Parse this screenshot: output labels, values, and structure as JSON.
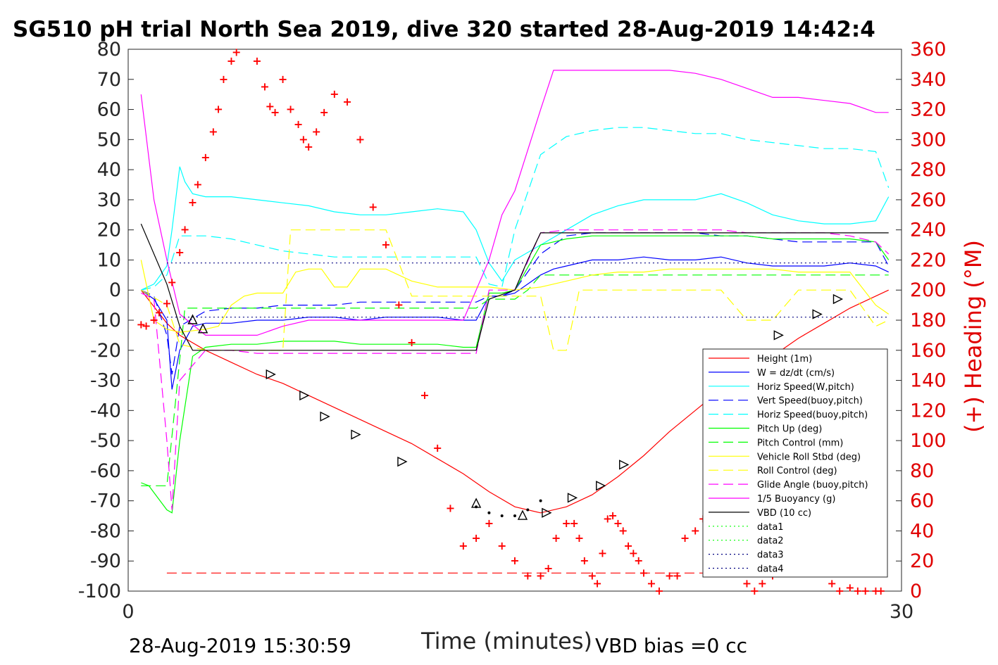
{
  "chart_data": {
    "type": "line",
    "title": "SG510 pH trial North Sea 2019, dive 320 started 28-Aug-2019 14:42:4",
    "xlabel": "Time (minutes)",
    "ylabel_right": "(+) Heading (°M)",
    "xlim": [
      0,
      30
    ],
    "ylim_left": [
      -100,
      80
    ],
    "ylim_right": [
      0,
      360
    ],
    "x_ticks": [
      "0",
      "30"
    ],
    "y_ticks_left": [
      "80",
      "70",
      "60",
      "50",
      "40",
      "30",
      "20",
      "10",
      "0",
      "-10",
      "-20",
      "-30",
      "-40",
      "-50",
      "-60",
      "-70",
      "-80",
      "-90",
      "-100"
    ],
    "y_ticks_right": [
      "360",
      "340",
      "320",
      "300",
      "280",
      "260",
      "240",
      "220",
      "200",
      "180",
      "160",
      "140",
      "120",
      "100",
      "80",
      "60",
      "40",
      "20",
      "0"
    ],
    "footer_left": "28-Aug-2019 15:30:59",
    "footer_right": "VBD bias =0 cc",
    "legend_position": "lower-right",
    "colors": {
      "height": "#ff0000",
      "w": "#0000ff",
      "horiz_w": "#00ffff",
      "vert_buoy": "#0000ff",
      "horiz_buoy": "#00ffff",
      "pitch": "#00ff00",
      "pitch_ctrl": "#00ff00",
      "roll": "#ffff00",
      "roll_ctrl": "#ffff00",
      "glide": "#ff00ff",
      "buoyancy": "#ff00ff",
      "vbd": "#000000",
      "data3": "#000080",
      "data4": "#000080",
      "heading": "#ff0000"
    },
    "series": [
      {
        "name": "Height (1m)",
        "color": "#ff0000",
        "style": "solid",
        "x": [
          0.5,
          1.5,
          2,
          3,
          4,
          5,
          6,
          7,
          8,
          9,
          10,
          11,
          12,
          13,
          14,
          15,
          16,
          17,
          18,
          19,
          20,
          21,
          22,
          23,
          24,
          25,
          26,
          27,
          28,
          29.5
        ],
        "y": [
          0,
          -11,
          -15,
          -20,
          -24,
          -28,
          -31,
          -35,
          -39,
          -43,
          -47,
          -51,
          -56,
          -61,
          -67,
          -72,
          -74,
          -72,
          -68,
          -62,
          -55,
          -47,
          -40,
          -33,
          -27,
          -22,
          -16,
          -11,
          -6,
          0
        ]
      },
      {
        "name": "W = dz/dt (cm/s)",
        "color": "#0000ff",
        "style": "solid",
        "x": [
          0.5,
          1,
          1.5,
          1.7,
          2,
          2.5,
          3,
          4,
          5,
          6,
          7,
          8,
          9,
          10,
          11,
          12,
          13,
          13.5,
          14,
          14.5,
          15,
          16,
          16.5,
          17,
          18,
          19,
          20,
          21,
          22,
          23,
          24,
          25,
          26,
          27,
          28,
          29,
          29.5
        ],
        "y": [
          0,
          -3,
          -10,
          -33,
          -20,
          -12,
          -11,
          -11,
          -10,
          -10,
          -9,
          -9,
          -10,
          -9,
          -9,
          -9,
          -10,
          -10,
          -2,
          -2,
          -1,
          5,
          7,
          8,
          10,
          10,
          11,
          10,
          10,
          11,
          9,
          8,
          8,
          8,
          9,
          8,
          6
        ]
      },
      {
        "name": "Horiz Speed(W,pitch)",
        "color": "#00ffff",
        "style": "solid",
        "x": [
          0.5,
          1,
          1.5,
          1.7,
          2,
          2.2,
          2.5,
          3,
          4,
          5,
          6,
          7,
          8,
          9,
          10,
          11,
          12,
          13,
          13.5,
          14,
          14.5,
          15,
          16,
          17,
          18,
          19,
          20,
          21,
          22,
          23,
          24,
          25,
          26,
          27,
          28,
          29,
          29.5
        ],
        "y": [
          0,
          2,
          8,
          20,
          41,
          36,
          32,
          31,
          31,
          30,
          29,
          28,
          26,
          25,
          25,
          26,
          27,
          26,
          20,
          9,
          3,
          10,
          15,
          20,
          25,
          28,
          30,
          30,
          30,
          32,
          29,
          25,
          23,
          22,
          22,
          23,
          31
        ]
      },
      {
        "name": "Vert Speed(buoy,pitch)",
        "color": "#0000ff",
        "style": "dashed",
        "x": [
          0.5,
          1,
          1.5,
          1.7,
          2,
          3,
          4,
          5,
          6,
          7,
          8,
          9,
          10,
          11,
          12,
          13,
          13.5,
          14,
          14.5,
          15,
          16,
          17,
          18,
          19,
          20,
          21,
          22,
          23,
          24,
          25,
          26,
          27,
          28,
          29,
          29.5
        ],
        "y": [
          0,
          -2,
          -15,
          -28,
          -12,
          -7,
          -6,
          -6,
          -5,
          -5,
          -5,
          -4,
          -4,
          -4,
          -4,
          -4,
          -4,
          -2,
          -2,
          0,
          12,
          18,
          19,
          19,
          19,
          19,
          19,
          18,
          18,
          17,
          16,
          16,
          16,
          16,
          8
        ]
      },
      {
        "name": "Horiz Speed(buoy,pitch)",
        "color": "#00ffff",
        "style": "dashed",
        "x": [
          0.5,
          1,
          1.5,
          1.7,
          2,
          3,
          4,
          5,
          6,
          7,
          8,
          9,
          10,
          11,
          12,
          13,
          13.5,
          14,
          14.5,
          15,
          16,
          17,
          18,
          19,
          20,
          21,
          22,
          23,
          24,
          25,
          26,
          27,
          28,
          29,
          29.5
        ],
        "y": [
          0,
          1,
          5,
          10,
          18,
          18,
          17,
          15,
          13,
          12,
          11,
          11,
          11,
          11,
          11,
          11,
          11,
          2,
          1,
          20,
          45,
          51,
          53,
          54,
          54,
          53,
          52,
          52,
          50,
          49,
          48,
          47,
          47,
          46,
          34
        ]
      },
      {
        "name": "Pitch Up (deg)",
        "color": "#00ff00",
        "style": "solid",
        "x": [
          0.5,
          0.8,
          1.5,
          1.7,
          2,
          2.5,
          3,
          4,
          5,
          6,
          7,
          8,
          9,
          10,
          11,
          12,
          13,
          13.5,
          14,
          14.5,
          15,
          16,
          17,
          18,
          19,
          20,
          21,
          22,
          23,
          24,
          25,
          26,
          27,
          28,
          29,
          29.5
        ],
        "y": [
          -64,
          -65,
          -73,
          -74,
          -50,
          -22,
          -19,
          -18,
          -18,
          -17,
          -17,
          -17,
          -18,
          -18,
          -18,
          -18,
          -19,
          -19,
          -1,
          -1,
          0,
          15,
          17,
          18,
          18,
          18,
          18,
          18,
          18,
          18,
          17,
          17,
          17,
          17,
          16,
          10
        ]
      },
      {
        "name": "Pitch Control (mm)",
        "color": "#00ff00",
        "style": "dashed",
        "x": [
          0.5,
          1.5,
          1.8,
          2.2,
          3,
          4,
          5,
          6,
          7,
          8,
          9,
          10,
          11,
          12,
          13,
          13.5,
          14,
          15,
          15.5,
          16,
          17,
          18,
          19,
          20,
          21,
          22,
          23,
          24,
          25,
          26,
          27,
          28,
          29,
          29.5
        ],
        "y": [
          -65,
          -65,
          -40,
          -6,
          -6,
          -6,
          -6,
          -6,
          -6,
          -6,
          -6,
          -6,
          -6,
          -6,
          -6,
          -6,
          -3,
          -3,
          0,
          5,
          5,
          5,
          5,
          5,
          5,
          5,
          5,
          5,
          5,
          5,
          5,
          5,
          5,
          5
        ]
      },
      {
        "name": "Vehicle Roll Stbd (deg)",
        "color": "#ffff00",
        "style": "solid",
        "x": [
          0.5,
          1,
          1.5,
          2,
          3,
          3.5,
          4,
          4.5,
          5,
          6,
          6.5,
          7,
          7.5,
          8,
          8.5,
          9,
          10,
          11,
          12,
          13,
          13.5,
          14,
          15,
          16,
          17,
          18,
          19,
          20,
          21,
          22,
          23,
          24,
          25,
          26,
          27,
          28,
          29,
          29.5
        ],
        "y": [
          10,
          -10,
          -13,
          -14,
          -13,
          -12,
          -5,
          -2,
          -1,
          -1,
          6,
          7,
          7,
          1,
          1,
          7,
          7,
          3,
          1,
          1,
          1,
          1,
          0,
          1,
          3,
          5,
          6,
          6,
          7,
          7,
          7,
          7,
          7,
          6,
          6,
          6,
          -5,
          -8
        ]
      },
      {
        "name": "Roll Control (deg)",
        "color": "#ffff00",
        "style": "dashed",
        "x": [
          0.5,
          1.5,
          2,
          3,
          4,
          5,
          6,
          6.3,
          6.6,
          7,
          8,
          8.3,
          8.6,
          9,
          9.6,
          10,
          11,
          12,
          13,
          14,
          15,
          16,
          16.5,
          17,
          17.5,
          18,
          19,
          20,
          21,
          22,
          23,
          24,
          25,
          26,
          27,
          28,
          29,
          29.5
        ],
        "y": [
          0,
          -5,
          -18,
          -20,
          -20,
          -20,
          -20,
          20,
          20,
          20,
          20,
          20,
          20,
          20,
          20,
          20,
          -2,
          -2,
          -2,
          -2,
          -2,
          -2,
          -20,
          -20,
          0,
          0,
          0,
          0,
          0,
          0,
          0,
          -10,
          -10,
          0,
          0,
          0,
          -12,
          -10
        ]
      },
      {
        "name": "Glide Angle (buoy,pitch)",
        "color": "#ff00ff",
        "style": "dashed",
        "x": [
          0.5,
          1,
          1.5,
          1.7,
          2,
          3,
          4,
          5,
          6,
          7,
          8,
          9,
          10,
          11,
          12,
          13,
          13.5,
          14,
          15,
          16,
          17,
          18,
          19,
          20,
          21,
          22,
          23,
          24,
          25,
          26,
          27,
          28,
          29,
          29.5
        ],
        "y": [
          -1,
          -3,
          -50,
          -73,
          -30,
          -20,
          -20,
          -21,
          -21,
          -21,
          -21,
          -21,
          -21,
          -21,
          -21,
          -21,
          -21,
          0,
          0,
          19,
          20,
          20,
          20,
          20,
          20,
          20,
          20,
          19,
          19,
          19,
          19,
          18,
          16,
          12
        ]
      },
      {
        "name": "1/5 Buoyancy (g)",
        "color": "#ff00ff",
        "style": "solid",
        "x": [
          0.5,
          1,
          1.5,
          2,
          3,
          4,
          5,
          6,
          7,
          8,
          9,
          10,
          11,
          12,
          13,
          13.5,
          14,
          14.5,
          15,
          16,
          16.5,
          17,
          18,
          19,
          20,
          21,
          22,
          23,
          24,
          25,
          26,
          27,
          28,
          29,
          29.5
        ],
        "y": [
          65,
          30,
          10,
          -8,
          -15,
          -15,
          -15,
          -12,
          -10,
          -10,
          -10,
          -10,
          -10,
          -10,
          -10,
          0,
          10,
          25,
          33,
          60,
          73,
          73,
          73,
          73,
          73,
          73,
          72,
          70,
          67,
          64,
          64,
          63,
          62,
          59,
          59
        ]
      },
      {
        "name": "VBD (10 cc)",
        "color": "#000000",
        "style": "solid",
        "x": [
          0.5,
          1.5,
          2,
          2.5,
          3,
          4,
          5,
          6,
          7,
          8,
          9,
          10,
          11,
          12,
          13,
          13.5,
          14,
          15,
          15.5,
          16,
          17,
          18,
          19,
          20,
          21,
          22,
          23,
          24,
          25,
          26,
          27,
          28,
          29,
          29.5
        ],
        "y": [
          22,
          2,
          -12,
          -20,
          -20,
          -20,
          -20,
          -20,
          -20,
          -20,
          -20,
          -20,
          -20,
          -20,
          -20,
          -20,
          -3,
          0,
          10,
          19,
          19,
          19,
          19,
          19,
          19,
          19,
          19,
          19,
          19,
          19,
          19,
          19,
          19,
          19
        ]
      },
      {
        "name": "data1",
        "color": "#00ff00",
        "style": "dotted",
        "x": [],
        "y": []
      },
      {
        "name": "data2",
        "color": "#00ff00",
        "style": "dotted",
        "x": [],
        "y": []
      },
      {
        "name": "data3",
        "color": "#000080",
        "style": "dotted",
        "x": [
          1.5,
          29.5
        ],
        "y": [
          9,
          9
        ]
      },
      {
        "name": "data4",
        "color": "#000080",
        "style": "dotted",
        "x": [
          1.5,
          29.5
        ],
        "y": [
          -9,
          -9
        ]
      }
    ],
    "heading_series": {
      "color": "#ff0000",
      "x": [
        0.5,
        0.7,
        1,
        1.2,
        1.5,
        1.7,
        2,
        2.2,
        2.5,
        2.7,
        3,
        3.3,
        3.5,
        3.7,
        4,
        4.2,
        4.5,
        4.7,
        5,
        5.3,
        5.5,
        5.7,
        6,
        6.3,
        6.6,
        6.8,
        7,
        7.3,
        7.6,
        8,
        8.5,
        9,
        9.5,
        10,
        10.5,
        11,
        11.5,
        12,
        12.5,
        13,
        13.5,
        14,
        14.5,
        15,
        15.5,
        16,
        16.3,
        16.6,
        17,
        17.3,
        17.5,
        17.7,
        18,
        18.2,
        18.4,
        18.6,
        18.8,
        19,
        19.2,
        19.4,
        19.6,
        19.8,
        20,
        20.3,
        20.6,
        21,
        21.3,
        21.6,
        22,
        22.3,
        22.6,
        23,
        23.3,
        23.6,
        24,
        24.3,
        24.6,
        25,
        25.3,
        25.6,
        26,
        26.3,
        26.6,
        27,
        27.3,
        27.6,
        28,
        28.3,
        28.6,
        29,
        29.2
      ],
      "y": [
        177,
        176,
        180,
        185,
        191,
        205,
        225,
        240,
        258,
        270,
        288,
        305,
        320,
        340,
        352,
        358,
        365,
        364,
        352,
        335,
        322,
        318,
        340,
        320,
        310,
        300,
        295,
        305,
        318,
        330,
        325,
        300,
        255,
        230,
        190,
        165,
        130,
        95,
        55,
        30,
        35,
        45,
        30,
        20,
        10,
        10,
        15,
        35,
        45,
        45,
        35,
        20,
        10,
        5,
        25,
        48,
        50,
        45,
        40,
        30,
        25,
        20,
        12,
        5,
        0,
        10,
        10,
        35,
        40,
        48,
        40,
        35,
        30,
        15,
        5,
        0,
        5,
        10,
        40,
        50,
        45,
        40,
        30,
        15,
        5,
        0,
        2,
        0,
        0,
        0,
        0
      ]
    },
    "reference_line": {
      "y": -94,
      "color": "#ff0000",
      "style": "dashed"
    },
    "markers": {
      "right_triangles": {
        "x": [
          5.5,
          6.8,
          7.6,
          8.8,
          10.6,
          16.2,
          17.2,
          18.3,
          19.2,
          22.5,
          23.7,
          25.2,
          26.7,
          27.5
        ],
        "y": [
          -28,
          -35,
          -42,
          -48,
          -57,
          -74,
          -69,
          -65,
          -58,
          -29,
          -23,
          -15,
          -8,
          -3
        ]
      },
      "up_triangles": {
        "x": [
          2.5,
          2.9,
          13.5,
          15.3
        ],
        "y": [
          -10,
          -13,
          -71,
          -75
        ]
      },
      "dot_segment": {
        "x": [
          13.5,
          14,
          14.5,
          15,
          15.5,
          16
        ],
        "y": [
          -72,
          -74,
          -75,
          -75,
          -73,
          -70
        ]
      }
    }
  }
}
